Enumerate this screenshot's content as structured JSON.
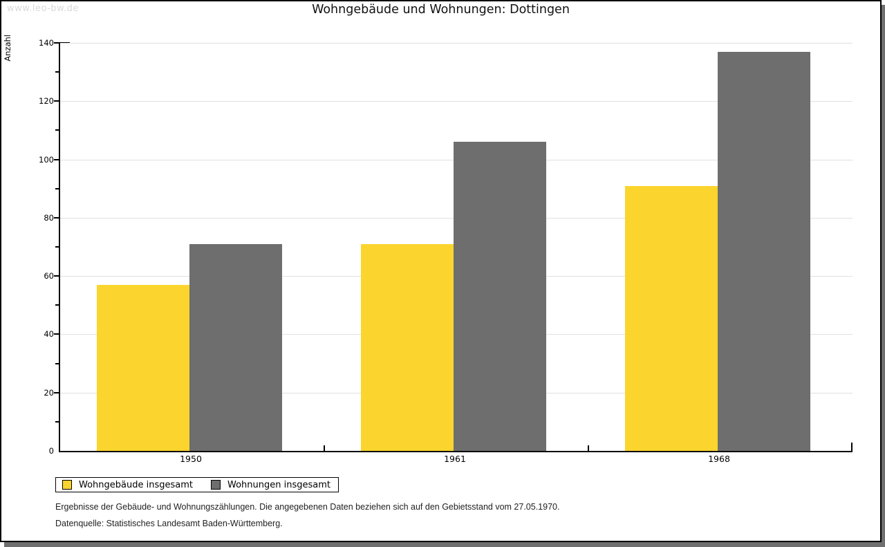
{
  "watermark": "www.leo-bw.de",
  "header": {
    "title": "Wohngebäude und Wohnungen: Dottingen"
  },
  "chart_data": {
    "type": "bar",
    "title": "Wohngebäude und Wohnungen: Dottingen",
    "ylabel": "Anzahl",
    "xlabel": "",
    "categories": [
      "1950",
      "1961",
      "1968"
    ],
    "series": [
      {
        "name": "Wohngebäude insgesamt",
        "color": "#FCD42E",
        "values": [
          57,
          71,
          91
        ]
      },
      {
        "name": "Wohnungen insgesamt",
        "color": "#6E6E6E",
        "values": [
          71,
          106,
          137
        ]
      }
    ],
    "ylim": [
      0,
      140
    ],
    "ytick_major": 20,
    "ytick_minor": 10,
    "grid": "horizontal-major",
    "gridline_color": "#E0E0E0",
    "legend_position": "bottom-left"
  },
  "footer": {
    "line1": "Ergebnisse der Gebäude- und Wohnungszählungen. Die angegebenen Daten beziehen sich auf den Gebietsstand vom 27.05.1970.",
    "line2": "Datenquelle: Statistisches Landesamt Baden-Württemberg."
  },
  "colors": {
    "bar_yellow": "#FCD42E",
    "bar_gray": "#6E6E6E",
    "axis": "#000000",
    "gridline": "#E0E0E0",
    "watermark_text": "#D9D9D9",
    "shadow": "#6F6F6F"
  }
}
